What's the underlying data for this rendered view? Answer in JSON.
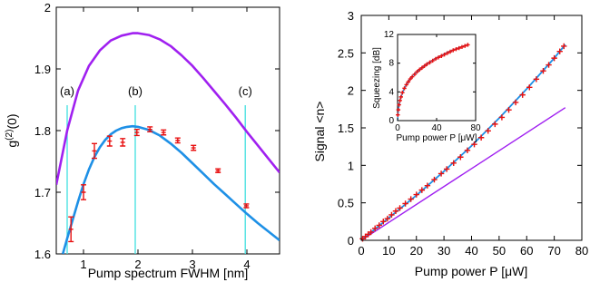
{
  "chart_data": [
    {
      "type": "line",
      "xlabel": "Pump spectrum FWHM [nm]",
      "ylabel": "g(2)(0)",
      "xlim": [
        0.5,
        4.6
      ],
      "ylim": [
        1.6,
        2.0
      ],
      "x_ticks": [
        1,
        2,
        3,
        4
      ],
      "y_ticks": [
        1.6,
        1.7,
        1.8,
        1.9,
        2
      ],
      "markers": [
        {
          "label": "(a)",
          "x": 0.7
        },
        {
          "label": "(b)",
          "x": 1.95
        },
        {
          "label": "(c)",
          "x": 3.97
        }
      ],
      "series": [
        {
          "color": "#a020f0",
          "x": [
            0.5,
            0.7,
            0.9,
            1.1,
            1.3,
            1.5,
            1.7,
            1.9,
            2.0,
            2.2,
            2.4,
            2.6,
            2.8,
            3.0,
            3.2,
            3.4,
            3.6,
            3.8,
            4.0,
            4.2,
            4.4,
            4.6
          ],
          "y": [
            1.712,
            1.8,
            1.865,
            1.905,
            1.93,
            1.946,
            1.954,
            1.958,
            1.958,
            1.955,
            1.948,
            1.937,
            1.922,
            1.905,
            1.885,
            1.864,
            1.843,
            1.821,
            1.798,
            1.776,
            1.754,
            1.732
          ]
        },
        {
          "color": "#1e90e6",
          "x": [
            0.62,
            0.7,
            0.8,
            0.9,
            1.0,
            1.1,
            1.2,
            1.3,
            1.4,
            1.5,
            1.6,
            1.7,
            1.8,
            1.9,
            2.0,
            2.2,
            2.4,
            2.6,
            2.8,
            3.0,
            3.2,
            3.4,
            3.6,
            3.8,
            4.0,
            4.2,
            4.4,
            4.6
          ],
          "y": [
            1.6,
            1.625,
            1.655,
            1.685,
            1.713,
            1.737,
            1.757,
            1.773,
            1.785,
            1.794,
            1.8,
            1.804,
            1.806,
            1.807,
            1.806,
            1.801,
            1.792,
            1.779,
            1.764,
            1.747,
            1.73,
            1.713,
            1.697,
            1.681,
            1.665,
            1.65,
            1.636,
            1.622
          ]
        },
        {
          "color": "#e81010",
          "mode": "errorbar",
          "x": [
            0.77,
            1.0,
            1.2,
            1.48,
            1.72,
            1.98,
            2.22,
            2.47,
            2.73,
            3.02,
            3.47,
            3.99
          ],
          "y": [
            1.64,
            1.7,
            1.767,
            1.783,
            1.781,
            1.797,
            1.802,
            1.797,
            1.784,
            1.772,
            1.735,
            1.678
          ],
          "err": [
            0.02,
            0.012,
            0.012,
            0.008,
            0.006,
            0.005,
            0.004,
            0.004,
            0.004,
            0.004,
            0.003,
            0.003
          ]
        }
      ]
    },
    {
      "type": "scatter",
      "xlabel": "Pump power P [μW]",
      "ylabel": "Signal <n>",
      "xlim": [
        0,
        80
      ],
      "ylim": [
        0,
        3
      ],
      "x_ticks": [
        0,
        10,
        20,
        30,
        40,
        50,
        60,
        70,
        80
      ],
      "y_ticks": [
        0,
        0.5,
        1,
        1.5,
        2,
        2.5,
        3
      ],
      "series": [
        {
          "color": "#e81010",
          "mode": "markers",
          "x": [
            0.5,
            1.5,
            2.5,
            3.5,
            5,
            6.5,
            8,
            9.5,
            11,
            12.5,
            14,
            16,
            18,
            20,
            22,
            24,
            26.5,
            29,
            31,
            33.5,
            36,
            38.5,
            41,
            43.5,
            46,
            48.5,
            51,
            53.5,
            56,
            58.5,
            61,
            63.5,
            66,
            68,
            70,
            72,
            73.5
          ],
          "y": [
            0.02,
            0.05,
            0.08,
            0.11,
            0.16,
            0.2,
            0.25,
            0.29,
            0.34,
            0.39,
            0.43,
            0.49,
            0.55,
            0.61,
            0.67,
            0.73,
            0.81,
            0.89,
            0.95,
            1.03,
            1.11,
            1.2,
            1.28,
            1.37,
            1.46,
            1.55,
            1.64,
            1.74,
            1.84,
            1.94,
            2.04,
            2.15,
            2.26,
            2.34,
            2.43,
            2.52,
            2.59
          ]
        },
        {
          "color": "#1e90e6",
          "mode": "line",
          "x": [
            0,
            10,
            20,
            30,
            40,
            50,
            60,
            70,
            74
          ],
          "y": [
            0,
            0.3,
            0.6,
            0.92,
            1.26,
            1.63,
            2.02,
            2.43,
            2.61
          ]
        },
        {
          "color": "#a020f0",
          "mode": "line",
          "x": [
            0,
            74
          ],
          "y": [
            0,
            1.77
          ]
        }
      ]
    },
    {
      "type": "scatter",
      "inset": true,
      "xlabel": "Pump power P [μW]",
      "ylabel": "Squeezing [dB]",
      "xlim": [
        0,
        80
      ],
      "ylim": [
        0,
        12
      ],
      "x_ticks": [
        0,
        40,
        80
      ],
      "y_ticks": [
        0,
        4,
        8,
        12
      ],
      "series": [
        {
          "color": "#e81010",
          "mode": "markers",
          "x": [
            0.3,
            0.8,
            1.5,
            2.5,
            3.5,
            5,
            7,
            9,
            11,
            13,
            15,
            17.5,
            20,
            22.5,
            25,
            27.5,
            30,
            33,
            36,
            39,
            42,
            45,
            48,
            51,
            54,
            57,
            60,
            63,
            66,
            69,
            72
          ],
          "y": [
            0.8,
            1.5,
            2.2,
            2.8,
            3.3,
            3.9,
            4.5,
            5.0,
            5.4,
            5.8,
            6.1,
            6.45,
            6.8,
            7.1,
            7.35,
            7.6,
            7.85,
            8.1,
            8.35,
            8.6,
            8.8,
            9.0,
            9.2,
            9.4,
            9.6,
            9.8,
            9.95,
            10.1,
            10.25,
            10.4,
            10.55
          ]
        },
        {
          "color": "#1e90e6",
          "mode": "line",
          "x": [
            0,
            1,
            3,
            6,
            10,
            15,
            20,
            30,
            40,
            50,
            60,
            72
          ],
          "y": [
            0,
            1.7,
            3.1,
            4.2,
            5.3,
            6.2,
            6.85,
            7.9,
            8.75,
            9.45,
            10.0,
            10.6
          ]
        }
      ]
    }
  ]
}
